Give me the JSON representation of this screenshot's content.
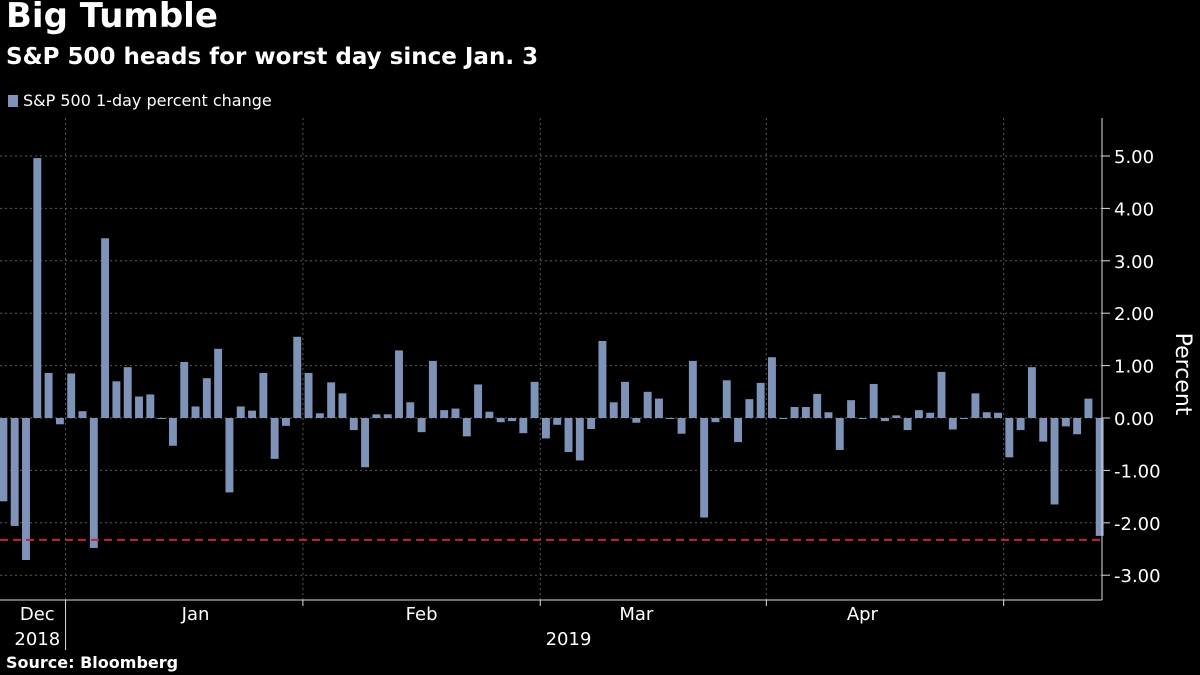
{
  "header": {
    "title": "Big Tumble",
    "subtitle": "S&P 500 heads for worst day since Jan. 3"
  },
  "footer": {
    "source": "Source: Bloomberg"
  },
  "colors": {
    "bar": "#7f93b8",
    "reference_line": "#c4223c",
    "grid": "#5a5a5a",
    "background": "#000000"
  },
  "chart_data": {
    "type": "bar",
    "title": "Big Tumble",
    "subtitle": "S&P 500 heads for worst day since Jan. 3",
    "ylabel": "Percent",
    "ylim": [
      -3.5,
      5.6
    ],
    "yticks": [
      5.0,
      4.0,
      3.0,
      2.0,
      1.0,
      0.0,
      -1.0,
      -2.0,
      -3.0
    ],
    "ytick_labels": [
      "5.00",
      "4.00",
      "3.00",
      "2.00",
      "1.00",
      "0.00",
      "-1.00",
      "-2.00",
      "-3.00"
    ],
    "y_axis_position": "right",
    "grid": true,
    "legend": {
      "position": "top-left",
      "entries": [
        "S&P 500 1-day percent change"
      ]
    },
    "reference_line": {
      "value": -2.25,
      "style": "dashed"
    },
    "x_month_labels": [
      {
        "label": "Dec",
        "index": 3
      },
      {
        "label": "Jan",
        "index": 17
      },
      {
        "label": "Feb",
        "index": 37
      },
      {
        "label": "Mar",
        "index": 56
      },
      {
        "label": "Apr",
        "index": 76
      }
    ],
    "x_year_labels": [
      {
        "label": "2018",
        "index": 3
      },
      {
        "label": "2019",
        "index": 50
      }
    ],
    "series": [
      {
        "name": "S&P 500 1-day percent change",
        "values": [
          -1.59,
          -2.06,
          -2.71,
          4.96,
          0.86,
          -0.12,
          0.85,
          0.13,
          -2.48,
          3.43,
          0.7,
          0.97,
          0.41,
          0.45,
          -0.01,
          -0.53,
          1.07,
          0.22,
          0.76,
          1.32,
          -1.42,
          0.22,
          0.14,
          0.86,
          -0.78,
          -0.15,
          1.55,
          0.86,
          0.09,
          0.68,
          0.47,
          -0.23,
          -0.94,
          0.07,
          0.07,
          1.29,
          0.3,
          -0.27,
          1.09,
          0.15,
          0.18,
          -0.35,
          0.64,
          0.12,
          -0.08,
          -0.06,
          -0.29,
          0.69,
          -0.39,
          -0.13,
          -0.65,
          -0.81,
          -0.21,
          1.47,
          0.3,
          0.69,
          -0.09,
          0.5,
          0.37,
          -0.02,
          -0.3,
          1.09,
          -1.9,
          -0.08,
          0.72,
          -0.46,
          0.36,
          0.67,
          1.16,
          -0.02,
          0.21,
          0.21,
          0.46,
          0.11,
          -0.61,
          0.34,
          -0.01,
          0.65,
          -0.06,
          0.05,
          -0.23,
          0.15,
          0.1,
          0.88,
          -0.22,
          -0.02,
          0.47,
          0.11,
          0.1,
          -0.75,
          -0.23,
          0.97,
          -0.45,
          -1.65,
          -0.16,
          -0.31,
          0.37,
          -2.25
        ]
      }
    ]
  }
}
